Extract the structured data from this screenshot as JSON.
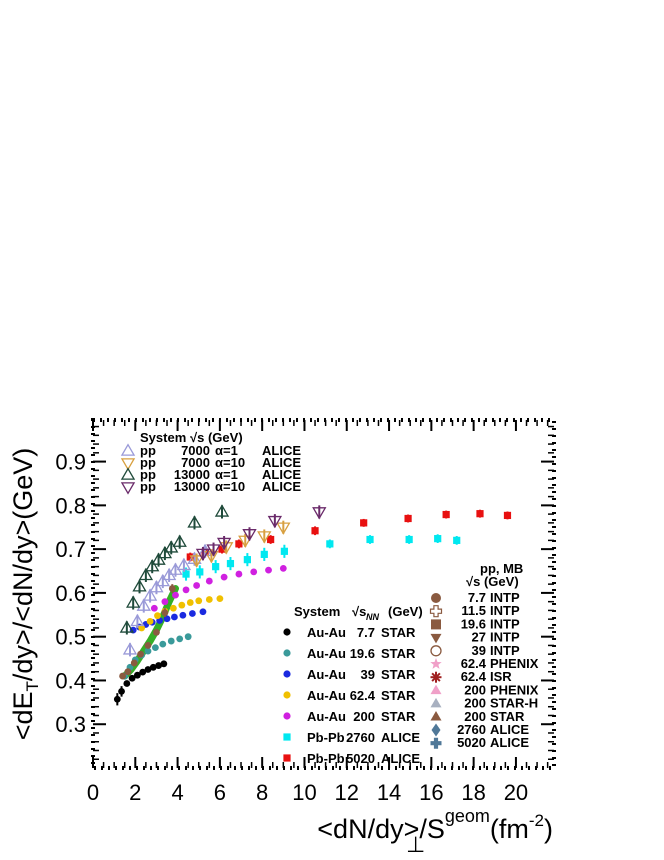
{
  "chart_data": {
    "type": "scatter",
    "xlabel_main": "<dN/dy>/S",
    "xlabel_sub": "⊥",
    "xlabel_sup": "geom",
    "xlabel_unit": "(fm",
    "xlabel_unit_sup": "-2",
    "xlabel_close": ")",
    "ylabel_part1": "<dE",
    "ylabel_sub": "T",
    "ylabel_part2": "/dy>/<dN/dy>(GeV)",
    "xlim": [
      0,
      21.8
    ],
    "ylim": [
      0.2,
      0.995
    ],
    "x_ticks": [
      0,
      2,
      4,
      6,
      8,
      10,
      12,
      14,
      16,
      18,
      20
    ],
    "y_ticks": [
      0.3,
      0.4,
      0.5,
      0.6,
      0.7,
      0.8,
      0.9
    ],
    "legend_pp": {
      "header_system": "System",
      "header_sqrt": "√s (GeV)",
      "entries": [
        {
          "sys": "pp",
          "energy": "7000",
          "alpha": "α=1",
          "exp": "ALICE",
          "color": "#9a9ad8",
          "marker": "tri-up-open"
        },
        {
          "sys": "pp",
          "energy": "7000",
          "alpha": "α=10",
          "exp": "ALICE",
          "color": "#d8a040",
          "marker": "tri-down-open"
        },
        {
          "sys": "pp",
          "energy": "13000",
          "alpha": "α=1",
          "exp": "ALICE",
          "color": "#1f4a3a",
          "marker": "tri-up-open"
        },
        {
          "sys": "pp",
          "energy": "13000",
          "alpha": "α=10",
          "exp": "ALICE",
          "color": "#6a2a6a",
          "marker": "tri-down-open"
        }
      ]
    },
    "legend_aa": {
      "header_system": "System",
      "header_sqrt": "√s",
      "header_sub": "NN",
      "header_unit": "(GeV)",
      "entries": [
        {
          "sys": "Au-Au",
          "energy": "7.7",
          "exp": "STAR",
          "color": "#000000",
          "marker": "circle"
        },
        {
          "sys": "Au-Au",
          "energy": "19.6",
          "exp": "STAR",
          "color": "#3a9a9a",
          "marker": "circle"
        },
        {
          "sys": "Au-Au",
          "energy": "39",
          "exp": "STAR",
          "color": "#1a2ae0",
          "marker": "circle"
        },
        {
          "sys": "Au-Au",
          "energy": "62.4",
          "exp": "STAR",
          "color": "#f0c000",
          "marker": "circle"
        },
        {
          "sys": "Au-Au",
          "energy": "200",
          "exp": "STAR",
          "color": "#d020e0",
          "marker": "circle"
        },
        {
          "sys": "Pb-Pb",
          "energy": "2760",
          "exp": "ALICE",
          "color": "#00e8f0",
          "marker": "square"
        },
        {
          "sys": "Pb-Pb",
          "energy": "5020",
          "exp": "ALICE",
          "color": "#e81010",
          "marker": "square"
        }
      ]
    },
    "legend_mb": {
      "header_title": "pp, MB",
      "header_sqrt": "√s (GeV)",
      "entries": [
        {
          "energy": "7.7",
          "exp": "INTP",
          "color": "#8a5a40",
          "marker": "circle"
        },
        {
          "energy": "11.5",
          "exp": "INTP",
          "color": "#8a5a40",
          "marker": "cross-open"
        },
        {
          "energy": "19.6",
          "exp": "INTP",
          "color": "#8a5a40",
          "marker": "square"
        },
        {
          "energy": "27",
          "exp": "INTP",
          "color": "#8a5a40",
          "marker": "tri-down"
        },
        {
          "energy": "39",
          "exp": "INTP",
          "color": "#8a5a40",
          "marker": "circle-open"
        },
        {
          "energy": "62.4",
          "exp": "PHENIX",
          "color": "#f0a0c8",
          "marker": "star"
        },
        {
          "energy": "62.4",
          "exp": "ISR",
          "color": "#a02020",
          "marker": "asterisk"
        },
        {
          "energy": "200",
          "exp": "PHENIX",
          "color": "#f0a0c8",
          "marker": "tri-up"
        },
        {
          "energy": "200",
          "exp": "STAR-H",
          "color": "#a8b0c0",
          "marker": "tri-up"
        },
        {
          "energy": "200",
          "exp": "STAR",
          "color": "#8a5a40",
          "marker": "tri-up"
        },
        {
          "energy": "2760",
          "exp": "ALICE",
          "color": "#507898",
          "marker": "diamond"
        },
        {
          "energy": "5020",
          "exp": "ALICE",
          "color": "#507898",
          "marker": "cross"
        }
      ]
    },
    "series": [
      {
        "name": "Au-Au 7.7 STAR",
        "color": "#000000",
        "marker": "circle",
        "x": [
          1.15,
          1.35,
          1.6,
          1.85,
          2.1,
          2.35,
          2.6,
          2.85,
          3.1,
          3.35
        ],
        "y": [
          0.357,
          0.375,
          0.393,
          0.405,
          0.412,
          0.419,
          0.425,
          0.43,
          0.434,
          0.438
        ],
        "err": [
          0.014,
          0.012,
          0.004,
          0.004,
          0.004,
          0.004,
          0.004,
          0.004,
          0.004,
          0.004
        ]
      },
      {
        "name": "Au-Au 19.6 STAR",
        "color": "#3a9a9a",
        "marker": "circle",
        "x": [
          1.5,
          1.75,
          2.0,
          2.3,
          2.6,
          2.95,
          3.3,
          3.7,
          4.1,
          4.5
        ],
        "y": [
          0.41,
          0.43,
          0.447,
          0.458,
          0.467,
          0.475,
          0.483,
          0.49,
          0.495,
          0.5
        ],
        "err": [
          0.004,
          0.004,
          0.004,
          0.004,
          0.004,
          0.004,
          0.004,
          0.004,
          0.004,
          0.004
        ]
      },
      {
        "name": "Au-Au 39 STAR",
        "color": "#1a2ae0",
        "marker": "circle",
        "x": [
          1.9,
          2.2,
          2.5,
          2.8,
          3.15,
          3.5,
          3.85,
          4.25,
          4.7,
          5.2
        ],
        "y": [
          0.515,
          0.522,
          0.528,
          0.533,
          0.537,
          0.541,
          0.545,
          0.549,
          0.553,
          0.557
        ],
        "err": [
          0.004,
          0.004,
          0.004,
          0.004,
          0.004,
          0.004,
          0.004,
          0.004,
          0.004,
          0.004
        ]
      },
      {
        "name": "Au-Au 62.4 STAR",
        "color": "#f0c000",
        "marker": "circle",
        "x": [
          2.3,
          2.7,
          3.05,
          3.4,
          3.8,
          4.2,
          4.6,
          5.0,
          5.5,
          6.0
        ],
        "y": [
          0.52,
          0.535,
          0.548,
          0.558,
          0.565,
          0.572,
          0.578,
          0.582,
          0.585,
          0.587
        ],
        "err": [
          0.004,
          0.004,
          0.004,
          0.004,
          0.004,
          0.004,
          0.004,
          0.004,
          0.004,
          0.004
        ]
      },
      {
        "name": "Au-Au 200 STAR",
        "color": "#d020e0",
        "marker": "circle",
        "x": [
          2.9,
          3.4,
          3.9,
          4.4,
          4.9,
          5.5,
          6.2,
          6.9,
          7.6,
          8.3,
          9.0
        ],
        "y": [
          0.565,
          0.58,
          0.595,
          0.607,
          0.617,
          0.627,
          0.636,
          0.643,
          0.648,
          0.652,
          0.656
        ],
        "err": [
          0.004,
          0.004,
          0.004,
          0.004,
          0.004,
          0.004,
          0.004,
          0.004,
          0.004,
          0.004,
          0.004
        ]
      },
      {
        "name": "Pb-Pb 2760 ALICE",
        "color": "#00e8f0",
        "marker": "square",
        "x": [
          4.4,
          5.05,
          5.8,
          6.5,
          7.3,
          8.1,
          9.05,
          11.2,
          13.1,
          14.95,
          16.3,
          17.2
        ],
        "y": [
          0.643,
          0.648,
          0.66,
          0.667,
          0.676,
          0.688,
          0.695,
          0.712,
          0.722,
          0.722,
          0.724,
          0.72
        ],
        "err": [
          0.015,
          0.015,
          0.015,
          0.015,
          0.015,
          0.015,
          0.015,
          0.01,
          0.01,
          0.01,
          0.01,
          0.01
        ]
      },
      {
        "name": "Pb-Pb 5020 ALICE",
        "color": "#e81010",
        "marker": "square",
        "x": [
          4.6,
          5.3,
          6.1,
          6.9,
          8.4,
          10.5,
          12.8,
          14.9,
          16.7,
          18.3,
          19.6
        ],
        "y": [
          0.682,
          0.693,
          0.7,
          0.712,
          0.722,
          0.742,
          0.76,
          0.77,
          0.779,
          0.781,
          0.777
        ],
        "err": [
          0.01,
          0.01,
          0.01,
          0.01,
          0.01,
          0.01,
          0.009,
          0.009,
          0.009,
          0.009,
          0.009
        ]
      },
      {
        "name": "pp 7000 α=1 ALICE",
        "color": "#9a9ad8",
        "marker": "tri-up-open",
        "x": [
          1.75,
          2.1,
          2.4,
          2.7,
          3.0,
          3.3,
          3.6,
          3.9,
          4.3,
          4.8,
          5.3
        ],
        "y": [
          0.47,
          0.535,
          0.57,
          0.593,
          0.612,
          0.626,
          0.64,
          0.652,
          0.663,
          0.677,
          0.695
        ],
        "err": [
          0.015,
          0.015,
          0.015,
          0.015,
          0.015,
          0.015,
          0.015,
          0.015,
          0.015,
          0.015,
          0.015
        ]
      },
      {
        "name": "pp 7000 α=10 ALICE",
        "color": "#d8a040",
        "marker": "tri-down-open",
        "x": [
          4.9,
          5.6,
          6.3,
          7.2,
          8.1,
          9.0
        ],
        "y": [
          0.675,
          0.685,
          0.705,
          0.72,
          0.73,
          0.75
        ],
        "err": [
          0.015,
          0.015,
          0.015,
          0.015,
          0.015,
          0.015
        ]
      },
      {
        "name": "pp 13000 α=1 ALICE",
        "color": "#1f4a3a",
        "marker": "tri-up-open",
        "x": [
          1.6,
          1.9,
          2.2,
          2.5,
          2.8,
          3.1,
          3.4,
          3.7,
          4.1,
          4.8,
          6.1
        ],
        "y": [
          0.52,
          0.577,
          0.614,
          0.64,
          0.66,
          0.675,
          0.69,
          0.703,
          0.716,
          0.76,
          0.785
        ],
        "err": [
          0.015,
          0.015,
          0.015,
          0.015,
          0.015,
          0.015,
          0.015,
          0.015,
          0.015,
          0.015,
          0.015
        ]
      },
      {
        "name": "pp 13000 α=10 ALICE",
        "color": "#6a2a6a",
        "marker": "tri-down-open",
        "x": [
          5.2,
          5.7,
          6.2,
          7.4,
          8.6,
          10.7
        ],
        "y": [
          0.69,
          0.7,
          0.715,
          0.735,
          0.765,
          0.785
        ],
        "err": [
          0.015,
          0.015,
          0.015,
          0.015,
          0.015,
          0.015
        ]
      },
      {
        "name": "pp MB",
        "color": "#8a5a40",
        "marker": "circle",
        "x": [
          1.4,
          1.65,
          1.95,
          2.25,
          2.6,
          3.0,
          3.4,
          3.75
        ],
        "y": [
          0.41,
          0.42,
          0.44,
          0.46,
          0.48,
          0.51,
          0.555,
          0.61
        ],
        "err": [
          0.005,
          0.005,
          0.005,
          0.005,
          0.005,
          0.005,
          0.01,
          0.01
        ]
      }
    ],
    "band": {
      "color": "#2aaa1a",
      "x": [
        1.5,
        1.8,
        2.1,
        2.4,
        2.7,
        3.0,
        3.3,
        3.6,
        3.9
      ],
      "y": [
        0.41,
        0.425,
        0.445,
        0.468,
        0.49,
        0.515,
        0.545,
        0.58,
        0.61
      ]
    }
  }
}
